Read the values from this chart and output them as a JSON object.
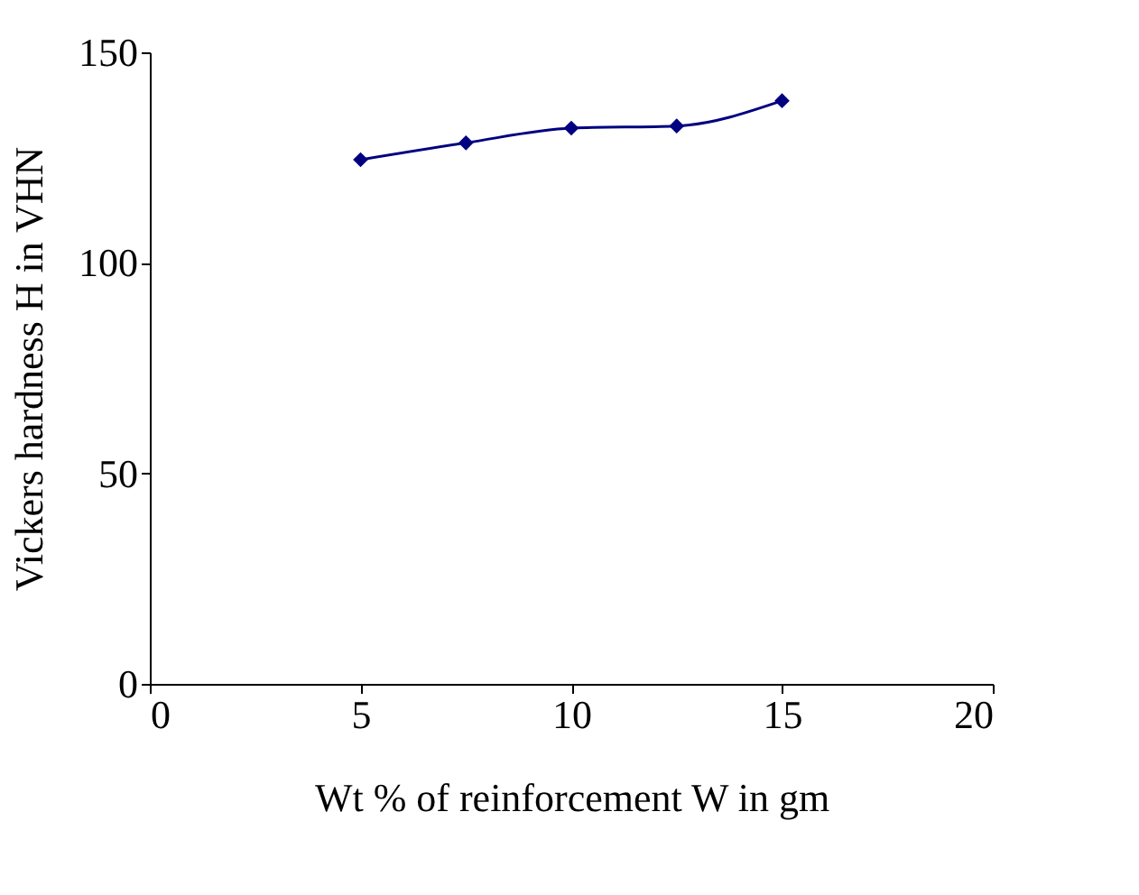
{
  "chart_data": {
    "type": "line",
    "xlabel": "Wt % of  reinforcement W in gm",
    "ylabel": "Vickers hardness H in VHN",
    "x": [
      5,
      7.5,
      10,
      12.5,
      15
    ],
    "series": [
      {
        "color": "#000080",
        "values": [
          124.5,
          128.5,
          132,
          132.5,
          138.5
        ]
      }
    ],
    "xlim": [
      0,
      20
    ],
    "xticks": [
      0,
      5,
      10,
      15,
      20
    ],
    "ylim": [
      0,
      150
    ],
    "yticks": [
      0,
      50,
      100,
      150
    ],
    "grid": false,
    "legend": false,
    "marker": "diamond",
    "line_style": "solid"
  }
}
